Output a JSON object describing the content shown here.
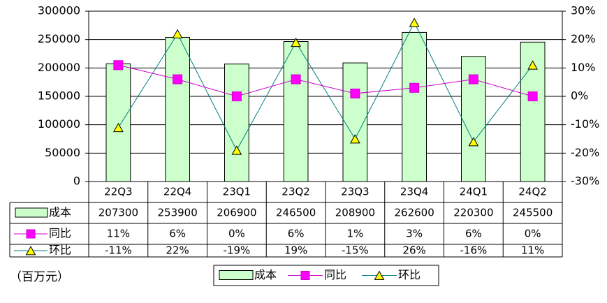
{
  "chart_data": {
    "type": "bar",
    "categories": [
      "22Q3",
      "22Q4",
      "23Q1",
      "23Q2",
      "23Q3",
      "23Q4",
      "24Q1",
      "24Q2"
    ],
    "series": [
      {
        "name": "成本",
        "kind": "bar",
        "axis": "left",
        "values": [
          207300,
          253900,
          206900,
          246500,
          208900,
          262600,
          220300,
          245500
        ],
        "labels": [
          "207300",
          "253900",
          "206900",
          "246500",
          "208900",
          "262600",
          "220300",
          "245500"
        ],
        "color": "#ccffcc"
      },
      {
        "name": "同比",
        "kind": "line",
        "axis": "right",
        "marker": "square",
        "values": [
          11,
          6,
          0,
          6,
          1,
          3,
          6,
          0
        ],
        "labels": [
          "11%",
          "6%",
          "0%",
          "6%",
          "1%",
          "3%",
          "6%",
          "0%"
        ],
        "color": "#cc00cc",
        "marker_color": "#ff00ff"
      },
      {
        "name": "环比",
        "kind": "line",
        "axis": "right",
        "marker": "triangle",
        "values": [
          -11,
          22,
          -19,
          19,
          -15,
          26,
          -16,
          11
        ],
        "labels": [
          "-11%",
          "22%",
          "-19%",
          "19%",
          "-15%",
          "26%",
          "-16%",
          "11%"
        ],
        "color": "#008080",
        "marker_color": "#ffff00"
      }
    ],
    "y_left": {
      "min": 0,
      "max": 300000,
      "step": 50000,
      "ticks": [
        "0",
        "50000",
        "100000",
        "150000",
        "200000",
        "250000",
        "300000"
      ]
    },
    "y_right": {
      "min": -30,
      "max": 30,
      "step": 10,
      "ticks": [
        "-30%",
        "-20%",
        "-10%",
        "0%",
        "10%",
        "20%",
        "30%"
      ]
    },
    "grid": true,
    "data_table": true,
    "legend_position": "bottom",
    "unit_note": "（百万元）"
  }
}
